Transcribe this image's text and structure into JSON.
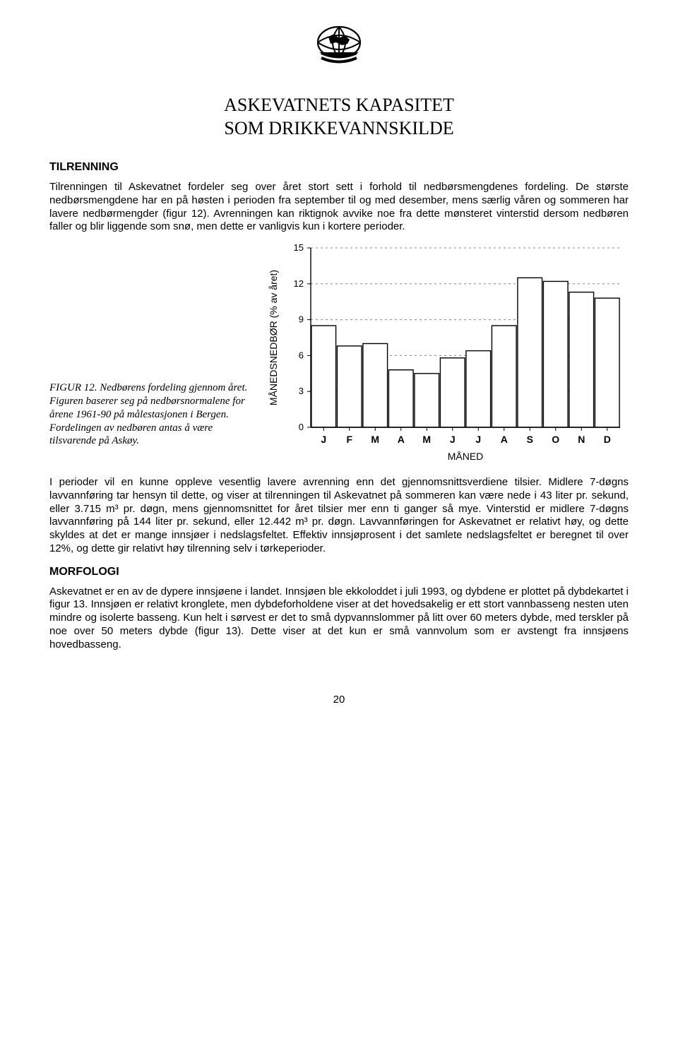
{
  "heading_line1": "ASKEVATNETS KAPASITET",
  "heading_line2": "SOM DRIKKEVANNSKILDE",
  "section1_title": "TILRENNING",
  "para1": "Tilrenningen til Askevatnet fordeler seg over året stort sett i forhold til nedbørsmengdenes fordeling. De største nedbørsmengdene har en på høsten i perioden fra september til og med desember, mens særlig våren og sommeren har lavere nedbørmengder (figur 12). Avrenningen kan riktignok avvike noe fra dette mønsteret vinterstid dersom nedbøren faller og blir liggende som snø, men dette er vanligvis kun i kortere perioder.",
  "figure_caption": "FIGUR 12. Nedbørens fordeling gjennom året. Figuren baserer seg på nedbørsnormalene for årene 1961-90 på målestasjonen i Bergen. Fordelingen av nedbøren antas å være tilsvarende på Askøy.",
  "para2": "I perioder vil en kunne oppleve vesentlig lavere avrenning enn det gjennomsnittsverdiene tilsier. Midlere 7-døgns lavvannføring tar hensyn til dette, og viser at tilrenningen til Askevatnet på sommeren kan være nede i 43 liter pr. sekund, eller 3.715 m³ pr. døgn, mens gjennomsnittet for året tilsier mer enn ti ganger så mye. Vinterstid er midlere 7-døgns lavvannføring på 144 liter pr. sekund, eller 12.442 m³ pr. døgn. Lavvannføringen for Askevatnet er relativt høy, og dette skyldes at det er mange innsjøer i nedslagsfeltet. Effektiv innsjøprosent i det samlete nedslagsfeltet er beregnet til over 12%, og dette gir relativt høy tilrenning selv i tørkeperioder.",
  "section2_title": "MORFOLOGI",
  "para3": "Askevatnet er en av de dypere innsjøene i landet. Innsjøen ble ekkoloddet i juli 1993, og dybdene er plottet på dybdekartet i figur 13. Innsjøen er relativt kronglete, men dybdeforholdene viser at det hovedsakelig er ett stort vannbasseng nesten uten mindre og isolerte basseng. Kun helt i sørvest er det to små dypvannslommer på litt over 60 meters dybde, med terskler på noe over 50 meters dybde (figur 13). Dette viser at det kun er små vannvolum som er avstengt fra innsjøens hovedbasseng.",
  "page_number": "20",
  "chart": {
    "type": "bar",
    "ylabel": "MÅNEDSNEDBØR (% av året)",
    "xlabel": "MÅNED",
    "categories": [
      "J",
      "F",
      "M",
      "A",
      "M",
      "J",
      "J",
      "A",
      "S",
      "O",
      "N",
      "D"
    ],
    "values": [
      8.5,
      6.8,
      7.0,
      4.8,
      4.5,
      5.8,
      6.4,
      8.5,
      12.5,
      12.2,
      11.3,
      10.8
    ],
    "ylim": [
      0,
      15
    ],
    "yticks": [
      0,
      3,
      6,
      9,
      12,
      15
    ],
    "bar_fill": "#ffffff",
    "bar_stroke": "#000000",
    "grid_color": "#888888",
    "axis_color": "#000000",
    "tick_font_size": 13,
    "label_font_size": 14,
    "bar_width_ratio": 0.95
  }
}
